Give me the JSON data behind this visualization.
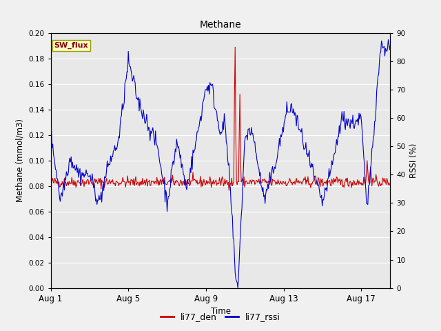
{
  "title": "Methane",
  "xlabel": "Time",
  "ylabel_left": "Methane (mmol/m3)",
  "ylabel_right": "RSSI (%)",
  "ylim_left": [
    0.0,
    0.2
  ],
  "ylim_right": [
    0,
    90
  ],
  "yticks_left": [
    0.0,
    0.02,
    0.04,
    0.06,
    0.08,
    0.1,
    0.12,
    0.14,
    0.16,
    0.18,
    0.2
  ],
  "yticks_right": [
    0,
    10,
    20,
    30,
    40,
    50,
    60,
    70,
    80,
    90
  ],
  "fig_bg_color": "#f0f0f0",
  "plot_bg_color": "#e8e8e8",
  "grid_color": "#ffffff",
  "line_color_red": "#cc0000",
  "line_color_blue": "#0000cc",
  "legend_box_facecolor": "#ffffcc",
  "legend_box_edgecolor": "#999900",
  "legend_text_color": "#880000",
  "SW_flux_label": "SW_flux",
  "legend_entries": [
    "li77_den",
    "li77_rssi"
  ],
  "x_tick_labels": [
    "Aug 1",
    "Aug 5",
    "Aug 9",
    "Aug 13",
    "Aug 17"
  ],
  "x_tick_positions": [
    1,
    5,
    9,
    13,
    17
  ],
  "num_points": 500,
  "date_start": 1,
  "date_end": 18.5
}
